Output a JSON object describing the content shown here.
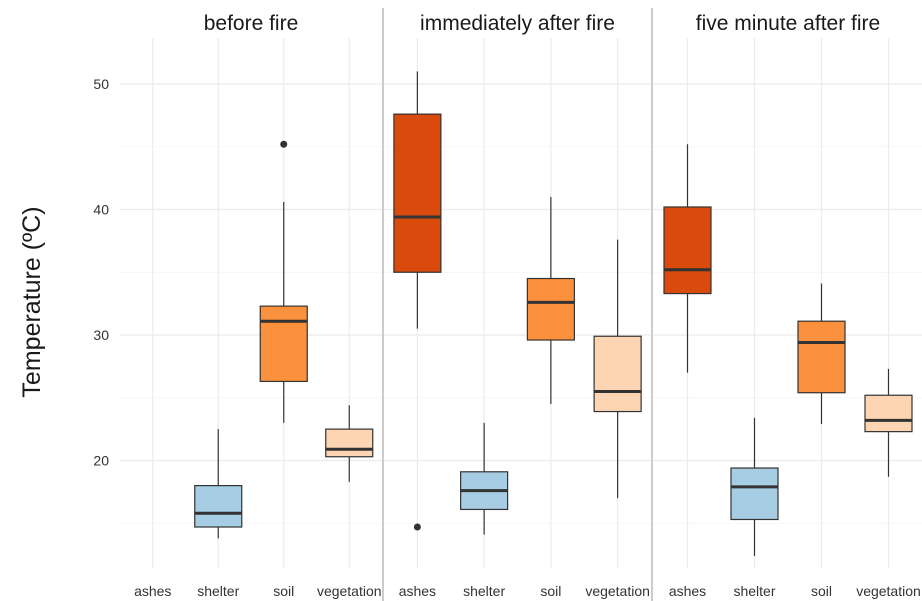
{
  "chart_data": {
    "type": "boxplot",
    "ylabel": "Temperature (ºC)",
    "xlabel": "",
    "y_ticks": [
      20,
      30,
      40,
      50
    ],
    "ylim": [
      12.5,
      52.5
    ],
    "grid": true,
    "categories": [
      "ashes",
      "shelter",
      "soil",
      "vegetation"
    ],
    "colors": {
      "ashes": "#d94a0c",
      "shelter": "#a6cde3",
      "soil": "#fb913d",
      "vegetation": "#fdd5b2"
    },
    "panels": [
      {
        "title": "before fire",
        "boxes": [
          {
            "category": "shelter",
            "min": 13.8,
            "q1": 14.7,
            "median": 15.8,
            "q3": 18.0,
            "max": 22.5,
            "outliers": []
          },
          {
            "category": "soil",
            "min": 23.0,
            "q1": 26.3,
            "median": 31.1,
            "q3": 32.3,
            "max": 40.6,
            "outliers": [
              45.2
            ]
          },
          {
            "category": "vegetation",
            "min": 18.3,
            "q1": 20.3,
            "median": 20.9,
            "q3": 22.5,
            "max": 24.4,
            "outliers": []
          }
        ]
      },
      {
        "title": "immediately after fire",
        "boxes": [
          {
            "category": "ashes",
            "min": 30.5,
            "q1": 35.0,
            "median": 39.4,
            "q3": 47.6,
            "max": 51.0,
            "outliers": [
              14.7
            ]
          },
          {
            "category": "shelter",
            "min": 14.1,
            "q1": 16.1,
            "median": 17.6,
            "q3": 19.1,
            "max": 23.0,
            "outliers": []
          },
          {
            "category": "soil",
            "min": 24.5,
            "q1": 29.6,
            "median": 32.6,
            "q3": 34.5,
            "max": 41.0,
            "outliers": []
          },
          {
            "category": "vegetation",
            "min": 17.0,
            "q1": 23.9,
            "median": 25.5,
            "q3": 29.9,
            "max": 37.6,
            "outliers": []
          }
        ]
      },
      {
        "title": "five minute after fire",
        "boxes": [
          {
            "category": "ashes",
            "min": 27.0,
            "q1": 33.3,
            "median": 35.2,
            "q3": 40.2,
            "max": 45.2,
            "outliers": []
          },
          {
            "category": "shelter",
            "min": 12.4,
            "q1": 15.3,
            "median": 17.9,
            "q3": 19.4,
            "max": 23.4,
            "outliers": []
          },
          {
            "category": "soil",
            "min": 22.9,
            "q1": 25.4,
            "median": 29.4,
            "q3": 31.1,
            "max": 34.1,
            "outliers": []
          },
          {
            "category": "vegetation",
            "min": 18.7,
            "q1": 22.3,
            "median": 23.2,
            "q3": 25.2,
            "max": 27.3,
            "outliers": []
          }
        ]
      }
    ]
  }
}
